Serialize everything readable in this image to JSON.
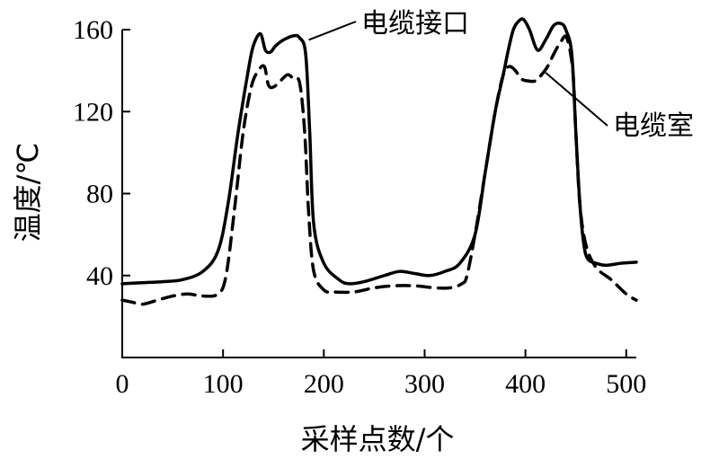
{
  "chart_data": {
    "type": "line",
    "xlabel": "采样点数/个",
    "ylabel": "温度/℃",
    "xlim": [
      0,
      510
    ],
    "ylim": [
      0,
      160
    ],
    "xticks": [
      0,
      100,
      200,
      300,
      400,
      500
    ],
    "yticks": [
      40,
      80,
      120,
      160
    ],
    "grid": false,
    "series": [
      {
        "name": "电缆接口",
        "style": "solid",
        "color": "#000000",
        "x": [
          0,
          20,
          40,
          60,
          80,
          95,
          105,
          115,
          125,
          130,
          137,
          142,
          147,
          152,
          160,
          170,
          176,
          182,
          186,
          190,
          200,
          215,
          225,
          240,
          260,
          275,
          290,
          305,
          320,
          335,
          350,
          360,
          370,
          378,
          383,
          388,
          393,
          398,
          404,
          412,
          420,
          428,
          435,
          440,
          446,
          450,
          454,
          458,
          462,
          470,
          480,
          495,
          510
        ],
        "y": [
          36,
          36.5,
          37,
          38,
          42,
          52,
          75,
          110,
          140,
          152,
          158,
          150,
          149,
          152,
          155,
          157,
          156,
          148,
          110,
          65,
          46,
          38,
          36,
          37,
          40,
          42,
          41,
          40,
          42,
          46,
          60,
          90,
          120,
          138,
          150,
          160,
          164,
          165,
          160,
          150,
          155,
          162,
          163,
          160,
          148,
          110,
          75,
          55,
          48,
          46,
          45,
          46,
          46.5
        ]
      },
      {
        "name": "电缆室",
        "style": "dashed",
        "color": "#000000",
        "x": [
          0,
          10,
          20,
          35,
          50,
          65,
          80,
          95,
          103,
          112,
          120,
          128,
          135,
          141,
          145,
          150,
          157,
          164,
          170,
          176,
          181,
          185,
          190,
          200,
          210,
          230,
          250,
          270,
          290,
          310,
          325,
          337,
          342,
          350,
          360,
          370,
          378,
          384,
          390,
          396,
          402,
          410,
          416,
          422,
          428,
          435,
          441,
          447,
          450,
          454,
          460,
          470,
          485,
          500,
          510
        ],
        "y": [
          28,
          27,
          26,
          28,
          30,
          31,
          30,
          31,
          40,
          75,
          110,
          132,
          140,
          142,
          133,
          132,
          135,
          138,
          136,
          134,
          110,
          70,
          42,
          33,
          32,
          32,
          34,
          35,
          35,
          34,
          34,
          36,
          40,
          60,
          90,
          120,
          138,
          142,
          140,
          136,
          135,
          135,
          138,
          142,
          148,
          154,
          156,
          140,
          110,
          75,
          55,
          44,
          38,
          31,
          28
        ]
      }
    ],
    "annotations": [
      {
        "text": "电缆接口",
        "points_to": "电缆接口",
        "at_x": 185,
        "at_y": 155
      },
      {
        "text": "电缆室",
        "points_to": "电缆室",
        "at_x": 420,
        "at_y": 139
      }
    ]
  }
}
